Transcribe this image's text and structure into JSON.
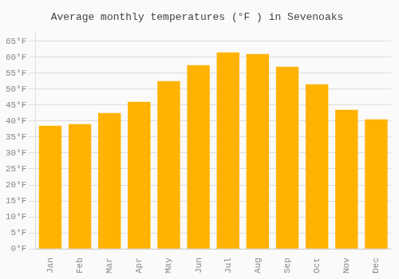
{
  "chart_data": {
    "type": "bar",
    "title": "Average monthly temperatures (°F ) in Sevenoaks",
    "categories": [
      "Jan",
      "Feb",
      "Mar",
      "Apr",
      "May",
      "Jun",
      "Jul",
      "Aug",
      "Sep",
      "Oct",
      "Nov",
      "Dec"
    ],
    "values": [
      38.5,
      39.0,
      42.5,
      46.0,
      52.5,
      57.5,
      61.5,
      61.0,
      57.0,
      51.5,
      43.5,
      40.5
    ],
    "color": "#FFB300",
    "ylim": [
      0,
      68
    ],
    "yticks": [
      {
        "value": 0,
        "label": "0°F"
      },
      {
        "value": 5,
        "label": "5°F"
      },
      {
        "value": 10,
        "label": "10°F"
      },
      {
        "value": 15,
        "label": "15°F"
      },
      {
        "value": 20,
        "label": "20°F"
      },
      {
        "value": 25,
        "label": "25°F"
      },
      {
        "value": 30,
        "label": "30°F"
      },
      {
        "value": 35,
        "label": "35°F"
      },
      {
        "value": 40,
        "label": "40°F"
      },
      {
        "value": 45,
        "label": "45°F"
      },
      {
        "value": 50,
        "label": "50°F"
      },
      {
        "value": 55,
        "label": "55°F"
      },
      {
        "value": 60,
        "label": "60°F"
      },
      {
        "value": 65,
        "label": "65°F"
      }
    ],
    "grid": true
  }
}
